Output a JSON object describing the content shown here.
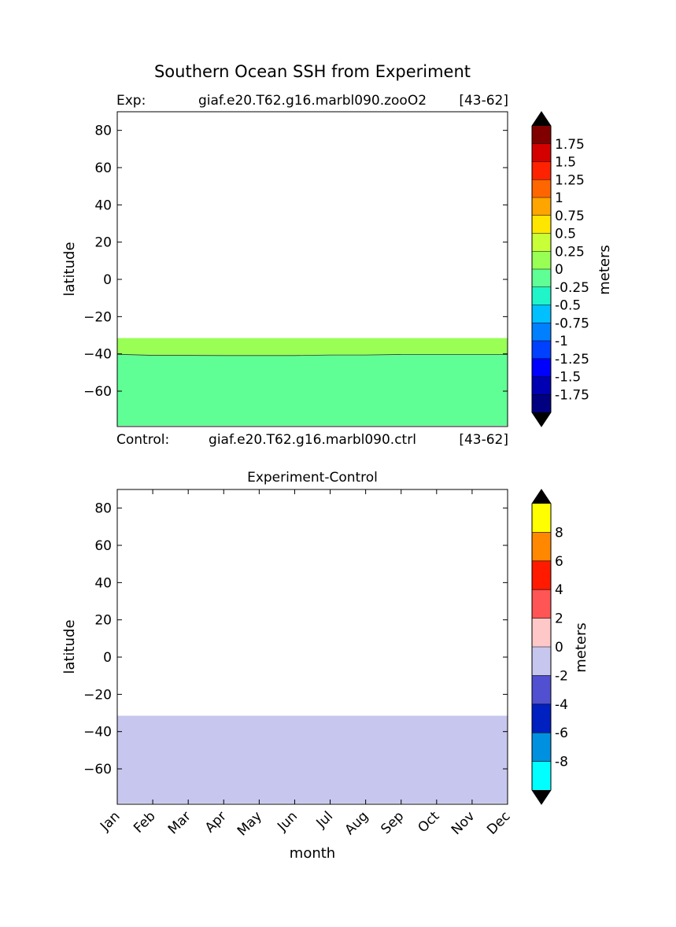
{
  "figure": {
    "title": "Southern Ocean SSH from Experiment"
  },
  "chart_data": [
    {
      "type": "heatmap",
      "panel": "top",
      "title": "",
      "left_title": "Exp:",
      "center_title": "giaf.e20.T62.g16.marbl090.zooO2",
      "right_title": "[43-62]",
      "bottom_left": "Control:",
      "bottom_center": "giaf.e20.T62.g16.marbl090.ctrl",
      "bottom_right": "[43-62]",
      "xlabel": "",
      "ylabel": "latitude",
      "ylim": [
        -79,
        90
      ],
      "yticks": [
        "80",
        "60",
        "40",
        "20",
        "0",
        "−20",
        "−40",
        "−60"
      ],
      "ytick_values": [
        80,
        60,
        40,
        20,
        0,
        -20,
        -40,
        -60
      ],
      "x": [
        "Jan",
        "Feb",
        "Mar",
        "Apr",
        "May",
        "Jun",
        "Jul",
        "Aug",
        "Sep",
        "Oct",
        "Nov",
        "Dec"
      ],
      "boundary_lat": [
        -40.2,
        -40.8,
        -40.8,
        -40.9,
        -40.9,
        -40.9,
        -40.6,
        -40.6,
        -40.3,
        -40.3,
        -40.3,
        -40.3
      ],
      "regions": [
        {
          "range": "0 to 0.25",
          "lat_top": -31.5,
          "lower": "boundary",
          "color": "#99ff55"
        },
        {
          "range": "-0.25 to 0",
          "lat_top": "boundary",
          "lower": -78.5,
          "color": "#60ff96"
        }
      ],
      "colorbar": {
        "label": "meters",
        "colors": [
          "#000080",
          "#0000b2",
          "#0000ff",
          "#0040ff",
          "#0080ff",
          "#00c0ff",
          "#1ff5c8",
          "#60ff96",
          "#99ff55",
          "#c8ff36",
          "#ffe600",
          "#ffa500",
          "#ff6600",
          "#ff2200",
          "#d40000",
          "#800000"
        ],
        "extend_low_color": "#000000",
        "extend_high_color": "#000000",
        "tick_labels": [
          "1.75",
          "1.5",
          "1.25",
          "1",
          "0.75",
          "0.5",
          "0.25",
          "0",
          "-0.25",
          "-0.5",
          "-0.75",
          "-1",
          "-1.25",
          "-1.5",
          "-1.75"
        ],
        "tick_values": [
          1.75,
          1.5,
          1.25,
          1,
          0.75,
          0.5,
          0.25,
          0,
          -0.25,
          -0.5,
          -0.75,
          -1,
          -1.25,
          -1.5,
          -1.75
        ],
        "range": [
          -2,
          2
        ]
      }
    },
    {
      "type": "heatmap",
      "panel": "bottom",
      "title": "Experiment-Control",
      "xlabel": "month",
      "ylabel": "latitude",
      "ylim": [
        -79,
        90
      ],
      "yticks": [
        "80",
        "60",
        "40",
        "20",
        "0",
        "−20",
        "−40",
        "−60"
      ],
      "ytick_values": [
        80,
        60,
        40,
        20,
        0,
        -20,
        -40,
        -60
      ],
      "x": [
        "Jan",
        "Feb",
        "Mar",
        "Apr",
        "May",
        "Jun",
        "Jul",
        "Aug",
        "Sep",
        "Oct",
        "Nov",
        "Dec"
      ],
      "regions": [
        {
          "range": "-2 to 0",
          "lat_top": -31.5,
          "lower": -78.5,
          "color": "#c6c6ee"
        }
      ],
      "colorbar": {
        "label": "meters",
        "colors": [
          "#00ffff",
          "#0090e0",
          "#0020c0",
          "#5050d0",
          "#c6c6ee",
          "#ffc8c8",
          "#ff5555",
          "#ff1a00",
          "#ff8800",
          "#ffff00"
        ],
        "extend_low_color": "#000000",
        "extend_high_color": "#000000",
        "tick_labels": [
          "8",
          "6",
          "4",
          "2",
          "0",
          "-2",
          "-4",
          "-6",
          "-8"
        ],
        "tick_values": [
          8,
          6,
          4,
          2,
          0,
          -2,
          -4,
          -6,
          -8
        ],
        "range": [
          -10,
          10
        ]
      }
    }
  ]
}
